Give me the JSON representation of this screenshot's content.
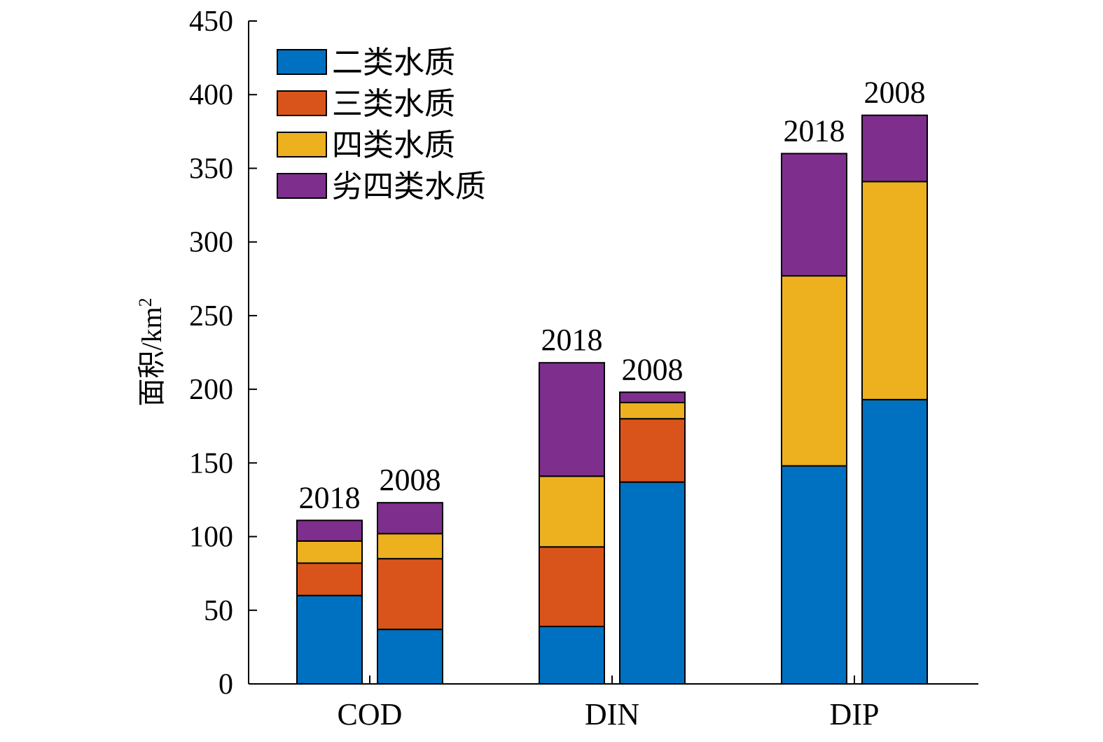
{
  "chart_data": {
    "type": "bar",
    "stacked": true,
    "categories": [
      "COD",
      "DIN",
      "DIP"
    ],
    "bar_groups": [
      "2018",
      "2008"
    ],
    "ylabel": "面积/km",
    "ylabel_superscript": "2",
    "ylim": [
      0,
      450
    ],
    "yticks": [
      0,
      50,
      100,
      150,
      200,
      250,
      300,
      350,
      400,
      450
    ],
    "grid": false,
    "legend_position": "top-left",
    "series": [
      {
        "name": "二类水质",
        "color": "#0070C0",
        "values": {
          "2018": [
            60,
            39,
            148
          ],
          "2008": [
            37,
            137,
            193
          ]
        }
      },
      {
        "name": "三类水质",
        "color": "#D9541A",
        "values": {
          "2018": [
            22,
            54,
            0
          ],
          "2008": [
            48,
            43,
            0
          ]
        }
      },
      {
        "name": "四类水质",
        "color": "#EDB120",
        "values": {
          "2018": [
            15,
            48,
            129
          ],
          "2008": [
            17,
            11,
            148
          ]
        }
      },
      {
        "name": "劣四类水质",
        "color": "#7E2F8E",
        "values": {
          "2018": [
            14,
            77,
            83
          ],
          "2008": [
            21,
            7,
            45
          ]
        }
      }
    ]
  }
}
